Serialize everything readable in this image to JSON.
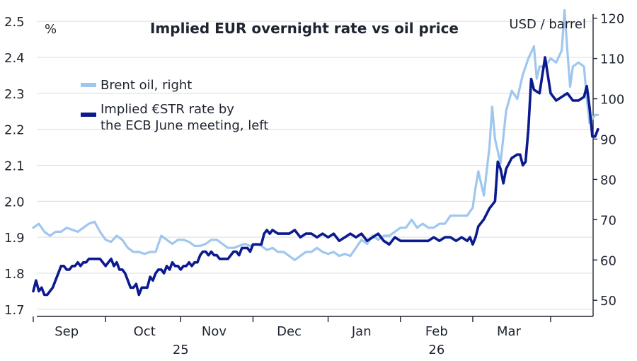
{
  "chart_data": {
    "type": "line",
    "title": "Implied EUR overnight rate vs oil price",
    "left_unit": "%",
    "right_unit": "USD / barrel",
    "left_ylim": [
      1.68,
      2.52
    ],
    "right_ylim": [
      46,
      121
    ],
    "left_ticks": [
      "1.7",
      "1.8",
      "1.9",
      "2.0",
      "2.1",
      "2.2",
      "2.3",
      "2.4",
      "2.5"
    ],
    "right_ticks": [
      "50",
      "60",
      "70",
      "80",
      "90",
      "100",
      "110",
      "120"
    ],
    "x_range": [
      0,
      200
    ],
    "months": [
      {
        "label": "Sep",
        "x": 12
      },
      {
        "label": "Oct",
        "x": 40
      },
      {
        "label": "Nov",
        "x": 65
      },
      {
        "label": "Dec",
        "x": 92
      },
      {
        "label": "Jan",
        "x": 118
      },
      {
        "label": "Feb",
        "x": 145
      },
      {
        "label": "Mar",
        "x": 171
      }
    ],
    "month_dividers": [
      0,
      26,
      53,
      79,
      106,
      132,
      158,
      186
    ],
    "years": [
      {
        "label": "25",
        "x": 53
      },
      {
        "label": "26",
        "x": 145
      }
    ],
    "legend_position": "top-left",
    "grid": true,
    "series": [
      {
        "name": "Brent oil, right",
        "axis": "right",
        "color": "#9fc7ee",
        "points": [
          [
            0,
            68
          ],
          [
            2,
            69
          ],
          [
            4,
            67
          ],
          [
            6,
            66
          ],
          [
            8,
            67
          ],
          [
            10,
            67
          ],
          [
            12,
            68
          ],
          [
            14,
            67.5
          ],
          [
            16,
            67
          ],
          [
            18,
            68
          ],
          [
            20,
            69
          ],
          [
            22,
            69.5
          ],
          [
            24,
            67
          ],
          [
            26,
            65
          ],
          [
            28,
            64.5
          ],
          [
            30,
            66
          ],
          [
            32,
            65
          ],
          [
            34,
            63
          ],
          [
            36,
            62
          ],
          [
            38,
            62
          ],
          [
            40,
            61.5
          ],
          [
            42,
            62
          ],
          [
            44,
            62
          ],
          [
            46,
            66
          ],
          [
            48,
            65
          ],
          [
            50,
            64
          ],
          [
            52,
            65
          ],
          [
            54,
            65
          ],
          [
            56,
            64.5
          ],
          [
            58,
            63.5
          ],
          [
            60,
            63.5
          ],
          [
            62,
            64
          ],
          [
            64,
            65
          ],
          [
            66,
            65
          ],
          [
            68,
            64
          ],
          [
            70,
            63
          ],
          [
            72,
            63
          ],
          [
            74,
            63.5
          ],
          [
            76,
            64
          ],
          [
            78,
            63.5
          ],
          [
            80,
            64
          ],
          [
            82,
            63.5
          ],
          [
            84,
            62.5
          ],
          [
            86,
            63
          ],
          [
            88,
            62
          ],
          [
            90,
            62
          ],
          [
            92,
            61
          ],
          [
            94,
            60
          ],
          [
            96,
            61
          ],
          [
            98,
            62
          ],
          [
            100,
            62
          ],
          [
            102,
            63
          ],
          [
            104,
            62
          ],
          [
            106,
            61.5
          ],
          [
            108,
            62
          ],
          [
            110,
            61
          ],
          [
            112,
            61.5
          ],
          [
            114,
            61
          ],
          [
            116,
            63
          ],
          [
            118,
            65
          ],
          [
            120,
            64
          ],
          [
            122,
            66
          ],
          [
            124,
            65
          ],
          [
            126,
            66
          ],
          [
            128,
            66
          ],
          [
            130,
            67
          ],
          [
            132,
            68
          ],
          [
            134,
            68
          ],
          [
            136,
            70
          ],
          [
            138,
            68
          ],
          [
            140,
            69
          ],
          [
            142,
            68
          ],
          [
            144,
            68
          ],
          [
            146,
            69
          ],
          [
            148,
            69
          ],
          [
            150,
            71
          ],
          [
            152,
            71
          ],
          [
            154,
            71
          ],
          [
            156,
            71
          ],
          [
            158,
            73
          ],
          [
            159,
            78
          ],
          [
            160,
            82
          ],
          [
            162,
            76
          ],
          [
            164,
            88
          ],
          [
            165,
            98
          ],
          [
            166,
            90
          ],
          [
            168,
            84
          ],
          [
            170,
            97
          ],
          [
            172,
            102
          ],
          [
            174,
            100
          ],
          [
            176,
            106
          ],
          [
            178,
            110
          ],
          [
            180,
            113
          ],
          [
            181,
            105
          ],
          [
            182,
            108
          ],
          [
            184,
            108
          ],
          [
            186,
            110
          ],
          [
            188,
            109
          ],
          [
            190,
            112
          ],
          [
            191,
            122
          ],
          [
            192,
            112
          ],
          [
            193,
            103
          ],
          [
            194,
            108
          ],
          [
            196,
            109
          ],
          [
            198,
            108
          ],
          [
            199,
            100
          ],
          [
            200,
            94
          ],
          [
            202,
            96
          ],
          [
            203,
            96
          ]
        ]
      },
      {
        "name": "Implied €STR rate by the ECB June meeting, left",
        "axis": "left",
        "color": "#0b1a8e",
        "points": [
          [
            0,
            1.75
          ],
          [
            1,
            1.78
          ],
          [
            2,
            1.75
          ],
          [
            3,
            1.76
          ],
          [
            4,
            1.74
          ],
          [
            5,
            1.74
          ],
          [
            6,
            1.75
          ],
          [
            7,
            1.76
          ],
          [
            8,
            1.78
          ],
          [
            9,
            1.8
          ],
          [
            10,
            1.82
          ],
          [
            11,
            1.82
          ],
          [
            12,
            1.81
          ],
          [
            13,
            1.81
          ],
          [
            14,
            1.82
          ],
          [
            15,
            1.82
          ],
          [
            16,
            1.83
          ],
          [
            17,
            1.82
          ],
          [
            18,
            1.83
          ],
          [
            19,
            1.83
          ],
          [
            20,
            1.84
          ],
          [
            21,
            1.84
          ],
          [
            22,
            1.84
          ],
          [
            23,
            1.84
          ],
          [
            24,
            1.84
          ],
          [
            25,
            1.83
          ],
          [
            26,
            1.82
          ],
          [
            27,
            1.83
          ],
          [
            28,
            1.84
          ],
          [
            29,
            1.82
          ],
          [
            30,
            1.83
          ],
          [
            31,
            1.81
          ],
          [
            32,
            1.81
          ],
          [
            33,
            1.8
          ],
          [
            34,
            1.78
          ],
          [
            35,
            1.76
          ],
          [
            36,
            1.76
          ],
          [
            37,
            1.77
          ],
          [
            38,
            1.74
          ],
          [
            39,
            1.76
          ],
          [
            40,
            1.76
          ],
          [
            41,
            1.76
          ],
          [
            42,
            1.79
          ],
          [
            43,
            1.78
          ],
          [
            44,
            1.8
          ],
          [
            45,
            1.81
          ],
          [
            46,
            1.81
          ],
          [
            47,
            1.8
          ],
          [
            48,
            1.82
          ],
          [
            49,
            1.81
          ],
          [
            50,
            1.83
          ],
          [
            51,
            1.82
          ],
          [
            52,
            1.82
          ],
          [
            53,
            1.81
          ],
          [
            54,
            1.82
          ],
          [
            55,
            1.82
          ],
          [
            56,
            1.83
          ],
          [
            57,
            1.82
          ],
          [
            58,
            1.83
          ],
          [
            59,
            1.83
          ],
          [
            60,
            1.85
          ],
          [
            61,
            1.86
          ],
          [
            62,
            1.86
          ],
          [
            63,
            1.85
          ],
          [
            64,
            1.86
          ],
          [
            65,
            1.85
          ],
          [
            66,
            1.85
          ],
          [
            67,
            1.84
          ],
          [
            68,
            1.84
          ],
          [
            69,
            1.84
          ],
          [
            70,
            1.84
          ],
          [
            71,
            1.85
          ],
          [
            72,
            1.86
          ],
          [
            73,
            1.86
          ],
          [
            74,
            1.85
          ],
          [
            75,
            1.87
          ],
          [
            76,
            1.87
          ],
          [
            77,
            1.87
          ],
          [
            78,
            1.86
          ],
          [
            79,
            1.88
          ],
          [
            80,
            1.88
          ],
          [
            81,
            1.88
          ],
          [
            82,
            1.88
          ],
          [
            83,
            1.91
          ],
          [
            84,
            1.92
          ],
          [
            85,
            1.91
          ],
          [
            86,
            1.92
          ],
          [
            88,
            1.91
          ],
          [
            90,
            1.91
          ],
          [
            92,
            1.91
          ],
          [
            94,
            1.92
          ],
          [
            96,
            1.9
          ],
          [
            98,
            1.91
          ],
          [
            100,
            1.91
          ],
          [
            102,
            1.9
          ],
          [
            104,
            1.91
          ],
          [
            106,
            1.9
          ],
          [
            108,
            1.91
          ],
          [
            110,
            1.89
          ],
          [
            112,
            1.9
          ],
          [
            114,
            1.91
          ],
          [
            116,
            1.9
          ],
          [
            118,
            1.91
          ],
          [
            120,
            1.89
          ],
          [
            122,
            1.9
          ],
          [
            124,
            1.91
          ],
          [
            126,
            1.89
          ],
          [
            128,
            1.88
          ],
          [
            130,
            1.9
          ],
          [
            132,
            1.89
          ],
          [
            134,
            1.89
          ],
          [
            136,
            1.89
          ],
          [
            138,
            1.89
          ],
          [
            140,
            1.89
          ],
          [
            142,
            1.89
          ],
          [
            144,
            1.9
          ],
          [
            146,
            1.89
          ],
          [
            148,
            1.9
          ],
          [
            150,
            1.9
          ],
          [
            152,
            1.89
          ],
          [
            154,
            1.9
          ],
          [
            156,
            1.89
          ],
          [
            157,
            1.9
          ],
          [
            158,
            1.88
          ],
          [
            159,
            1.9
          ],
          [
            160,
            1.93
          ],
          [
            162,
            1.95
          ],
          [
            164,
            1.98
          ],
          [
            166,
            2.0
          ],
          [
            167,
            2.11
          ],
          [
            168,
            2.09
          ],
          [
            169,
            2.05
          ],
          [
            170,
            2.09
          ],
          [
            172,
            2.12
          ],
          [
            174,
            2.13
          ],
          [
            175,
            2.13
          ],
          [
            176,
            2.1
          ],
          [
            177,
            2.11
          ],
          [
            178,
            2.2
          ],
          [
            179,
            2.34
          ],
          [
            180,
            2.31
          ],
          [
            182,
            2.3
          ],
          [
            184,
            2.4
          ],
          [
            186,
            2.3
          ],
          [
            188,
            2.28
          ],
          [
            190,
            2.29
          ],
          [
            192,
            2.3
          ],
          [
            194,
            2.28
          ],
          [
            196,
            2.28
          ],
          [
            198,
            2.29
          ],
          [
            199,
            2.32
          ],
          [
            200,
            2.26
          ],
          [
            201,
            2.18
          ],
          [
            202,
            2.18
          ],
          [
            203,
            2.2
          ]
        ]
      }
    ]
  }
}
